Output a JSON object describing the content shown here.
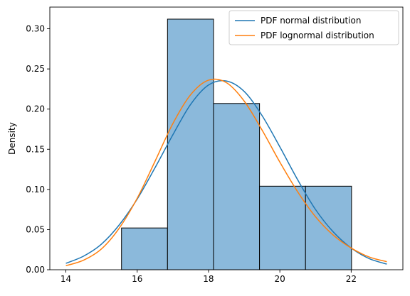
{
  "chart_data": {
    "type": "bar",
    "title": "",
    "xlabel": "",
    "ylabel": "Density",
    "xlim": [
      13.55,
      23.45
    ],
    "ylim": [
      0,
      0.327
    ],
    "grid": false,
    "x_ticks": [
      14,
      16,
      18,
      20,
      22
    ],
    "y_ticks": [
      0.0,
      0.05,
      0.1,
      0.15,
      0.2,
      0.25,
      0.3
    ],
    "histogram": {
      "bin_edges": [
        15.56,
        16.85,
        18.14,
        19.43,
        20.72,
        22.01
      ],
      "values": [
        0.052,
        0.312,
        0.207,
        0.104,
        0.104
      ],
      "color": "#8bb9db",
      "edge_color": "#000000"
    },
    "series": [
      {
        "name": "PDF normal distribution",
        "type": "line",
        "color": "#1f77b4",
        "x": [
          14.0,
          14.5,
          15.0,
          15.5,
          16.0,
          16.5,
          17.0,
          17.5,
          18.0,
          18.5,
          19.0,
          19.5,
          20.0,
          20.5,
          21.0,
          21.5,
          22.0,
          22.5,
          23.0
        ],
        "y": [
          0.008,
          0.017,
          0.032,
          0.056,
          0.088,
          0.127,
          0.168,
          0.206,
          0.23,
          0.235,
          0.222,
          0.192,
          0.153,
          0.112,
          0.075,
          0.047,
          0.027,
          0.014,
          0.007
        ]
      },
      {
        "name": "PDF lognormal distribution",
        "type": "line",
        "color": "#ff7f0e",
        "x": [
          14.0,
          14.5,
          15.0,
          15.5,
          16.0,
          16.5,
          17.0,
          17.5,
          18.0,
          18.5,
          19.0,
          19.5,
          20.0,
          20.5,
          21.0,
          21.5,
          22.0,
          22.5,
          23.0
        ],
        "y": [
          0.005,
          0.012,
          0.026,
          0.052,
          0.089,
          0.135,
          0.182,
          0.218,
          0.236,
          0.233,
          0.21,
          0.174,
          0.134,
          0.097,
          0.066,
          0.043,
          0.027,
          0.016,
          0.01
        ]
      }
    ],
    "legend": {
      "placement": "top-right",
      "entries": [
        "PDF normal distribution",
        "PDF lognormal distribution"
      ]
    }
  }
}
